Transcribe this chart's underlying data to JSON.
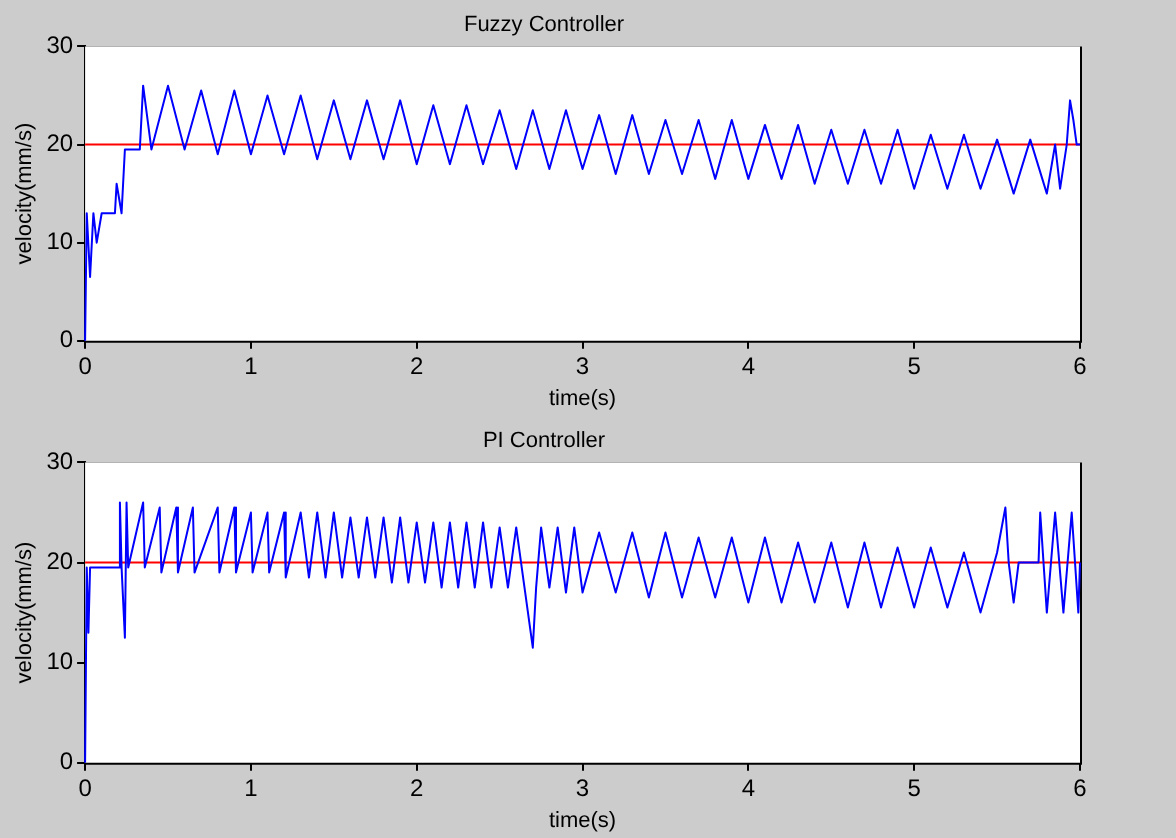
{
  "chart_data": [
    {
      "type": "line",
      "title": "Fuzzy Controller",
      "xlabel": "time(s)",
      "ylabel": "velocity(mm/s)",
      "xlim": [
        0,
        6
      ],
      "xticks": [
        0,
        1,
        2,
        3,
        4,
        5,
        6
      ],
      "ylim": [
        0,
        30
      ],
      "yticks": [
        0,
        10,
        20,
        30
      ],
      "grid": false,
      "legend": false,
      "marker": "none",
      "line_style": "solid",
      "ref_lines": [
        {
          "axis": "y",
          "value": 20,
          "color": "#ff0000"
        }
      ],
      "series": [
        {
          "color": "#0000ff",
          "x": [
            0,
            0.01,
            0.03,
            0.05,
            0.07,
            0.1,
            0.18,
            0.19,
            0.22,
            0.24,
            0.33,
            0.35,
            0.4,
            0.5,
            0.6,
            0.7,
            0.8,
            0.9,
            1.0,
            1.1,
            1.2,
            1.3,
            1.4,
            1.5,
            1.6,
            1.7,
            1.8,
            1.9,
            2.0,
            2.1,
            2.2,
            2.3,
            2.4,
            2.5,
            2.6,
            2.7,
            2.8,
            2.9,
            3.0,
            3.1,
            3.2,
            3.3,
            3.4,
            3.5,
            3.6,
            3.7,
            3.8,
            3.9,
            4.0,
            4.1,
            4.2,
            4.3,
            4.4,
            4.5,
            4.6,
            4.7,
            4.8,
            4.9,
            5.0,
            5.1,
            5.2,
            5.3,
            5.4,
            5.5,
            5.6,
            5.7,
            5.8,
            5.85,
            5.88,
            5.92,
            5.94,
            5.96,
            5.98,
            6.0
          ],
          "values": [
            0,
            13,
            6.5,
            13,
            10,
            13,
            13,
            16,
            13,
            19.5,
            19.5,
            26,
            19.5,
            26,
            19.5,
            25.5,
            19,
            25.5,
            19,
            25,
            19,
            25,
            18.5,
            24.5,
            18.5,
            24.5,
            18.5,
            24.5,
            18,
            24,
            18,
            24,
            18,
            23.5,
            17.5,
            23.5,
            17.5,
            23.5,
            17.5,
            23,
            17,
            23,
            17,
            22.5,
            17,
            22.5,
            16.5,
            22.5,
            16.5,
            22,
            16.5,
            22,
            16,
            21.5,
            16,
            21.5,
            16,
            21.5,
            15.5,
            21,
            15.5,
            21,
            15.5,
            20.5,
            15,
            20.5,
            15,
            20,
            15.5,
            20,
            24.5,
            22.5,
            20,
            20
          ]
        }
      ]
    },
    {
      "type": "line",
      "title": "PI Controller",
      "xlabel": "time(s)",
      "ylabel": "velocity(mm/s)",
      "xlim": [
        0,
        6
      ],
      "xticks": [
        0,
        1,
        2,
        3,
        4,
        5,
        6
      ],
      "ylim": [
        0,
        30
      ],
      "yticks": [
        0,
        10,
        20,
        30
      ],
      "grid": false,
      "legend": false,
      "marker": "none",
      "line_style": "solid",
      "ref_lines": [
        {
          "axis": "y",
          "value": 20,
          "color": "#ff0000"
        }
      ],
      "series": [
        {
          "color": "#0000ff",
          "x": [
            0,
            0.01,
            0.02,
            0.03,
            0.2,
            0.21,
            0.22,
            0.23,
            0.24,
            0.25,
            0.26,
            0.35,
            0.36,
            0.45,
            0.46,
            0.55,
            0.56,
            0.65,
            0.66,
            0.8,
            0.81,
            0.9,
            0.91,
            1.0,
            1.01,
            1.1,
            1.11,
            1.2,
            1.21,
            1.3,
            1.35,
            1.4,
            1.45,
            1.5,
            1.55,
            1.6,
            1.65,
            1.7,
            1.75,
            1.8,
            1.85,
            1.9,
            1.95,
            2.0,
            2.05,
            2.1,
            2.15,
            2.2,
            2.25,
            2.3,
            2.35,
            2.4,
            2.45,
            2.5,
            2.55,
            2.6,
            2.65,
            2.7,
            2.72,
            2.75,
            2.8,
            2.85,
            2.9,
            2.95,
            3.0,
            3.1,
            3.2,
            3.3,
            3.4,
            3.5,
            3.6,
            3.7,
            3.8,
            3.9,
            4.0,
            4.1,
            4.2,
            4.3,
            4.4,
            4.5,
            4.6,
            4.7,
            4.8,
            4.9,
            5.0,
            5.1,
            5.2,
            5.3,
            5.4,
            5.5,
            5.55,
            5.57,
            5.6,
            5.63,
            5.75,
            5.76,
            5.8,
            5.85,
            5.9,
            5.95,
            5.99,
            6.0
          ],
          "values": [
            0,
            19.5,
            13,
            19.5,
            19.5,
            26,
            19.5,
            16,
            12.5,
            26,
            19.5,
            26,
            19.5,
            25.5,
            19,
            25.5,
            19,
            25.5,
            19,
            25.5,
            19,
            25.5,
            19,
            25,
            19,
            25,
            19,
            25,
            18.5,
            25,
            18.5,
            25,
            18.5,
            25,
            18.5,
            24.5,
            18.5,
            24.5,
            18.5,
            24.5,
            18,
            24.5,
            18,
            24,
            18,
            24,
            17.5,
            24,
            17.5,
            24,
            17.5,
            24,
            17.5,
            23.5,
            17.5,
            23.5,
            17.5,
            11.5,
            17.5,
            23.5,
            17.5,
            23.5,
            17,
            23.5,
            17,
            23,
            17,
            23,
            16.5,
            23,
            16.5,
            22.5,
            16.5,
            22.5,
            16,
            22.5,
            16,
            22,
            16,
            22,
            15.5,
            22,
            15.5,
            21.5,
            15.5,
            21.5,
            15.5,
            21,
            15,
            21,
            25.5,
            20,
            16,
            20,
            20,
            25,
            15,
            25,
            15,
            25,
            15,
            20
          ]
        }
      ]
    }
  ]
}
